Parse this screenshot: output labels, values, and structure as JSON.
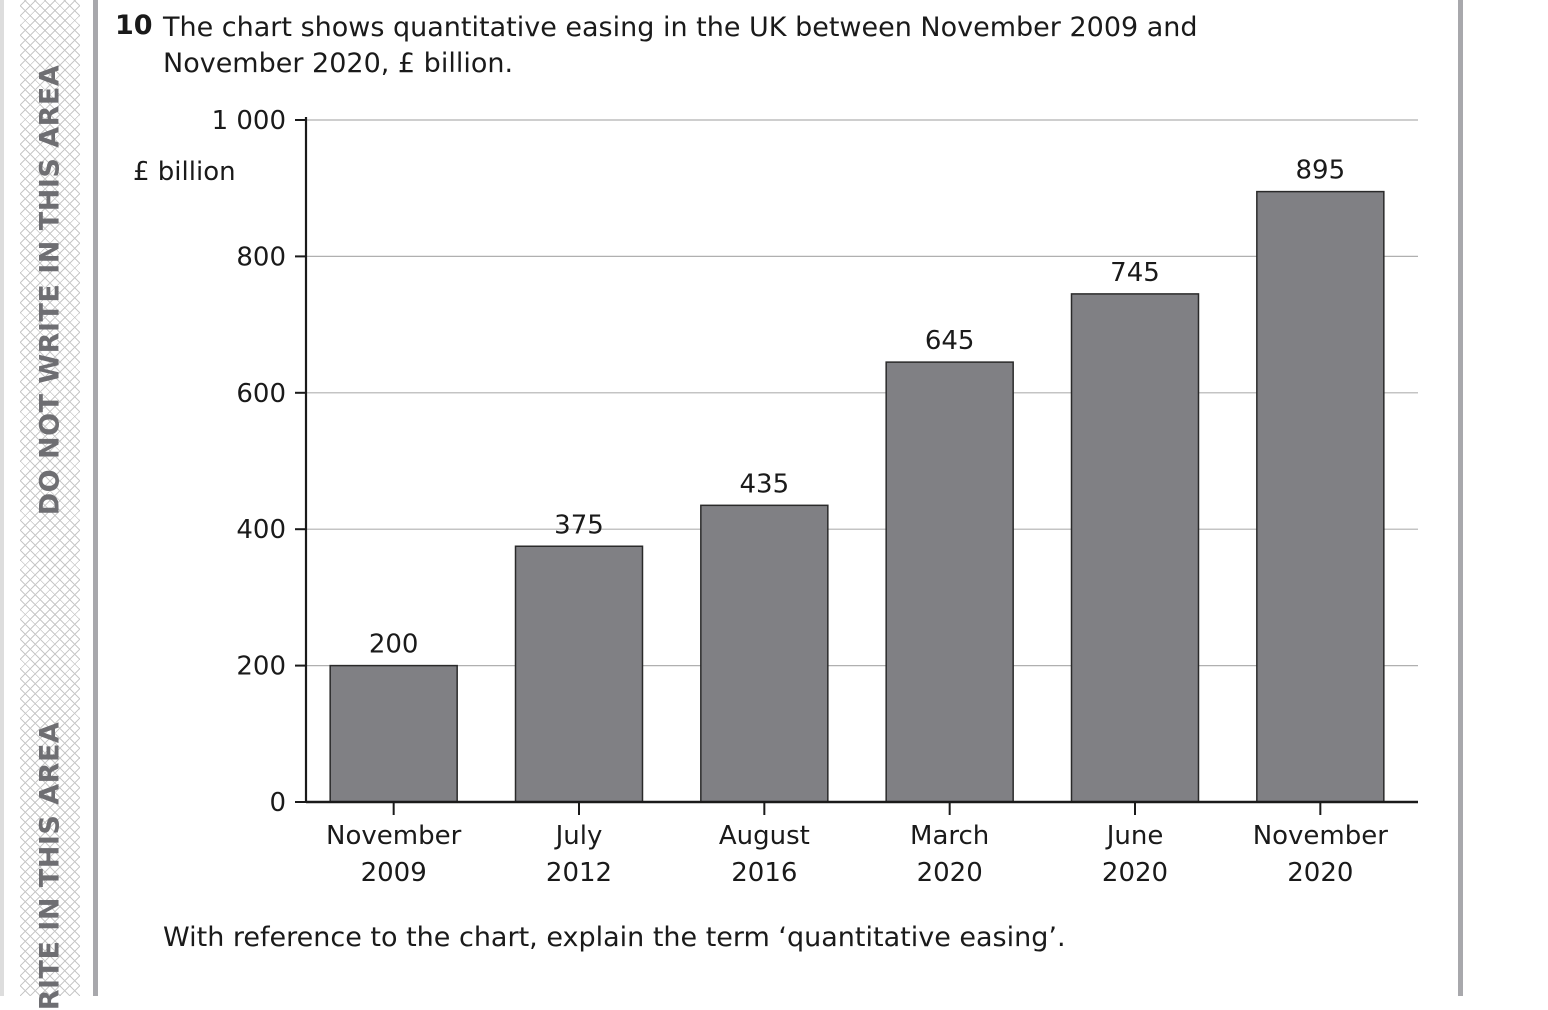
{
  "margin": {
    "top_text": "DO NOT WRITE IN THIS AREA",
    "bottom_text": "RITE IN THIS AREA"
  },
  "question": {
    "number": "10",
    "text": "The chart shows quantitative easing in the UK between November 2009 and November 2020, £ billion.",
    "prompt": "With reference to the chart, explain the term ‘quantitative easing’."
  },
  "chart_data": {
    "type": "bar",
    "title": "",
    "ylabel": "£ billion",
    "xlabel": "",
    "categories": [
      [
        "November",
        "2009"
      ],
      [
        "July",
        "2012"
      ],
      [
        "August",
        "2016"
      ],
      [
        "March",
        "2020"
      ],
      [
        "June",
        "2020"
      ],
      [
        "November",
        "2020"
      ]
    ],
    "values": [
      200,
      375,
      435,
      645,
      745,
      895
    ],
    "data_labels": [
      "200",
      "375",
      "435",
      "645",
      "745",
      "895"
    ],
    "ylim": [
      0,
      1000
    ],
    "yticks": [
      0,
      200,
      400,
      600,
      800,
      1000
    ],
    "ytick_labels": [
      "0",
      "200",
      "400",
      "600",
      "800",
      "1 000"
    ],
    "grid": true,
    "bar_color": "#808084"
  }
}
